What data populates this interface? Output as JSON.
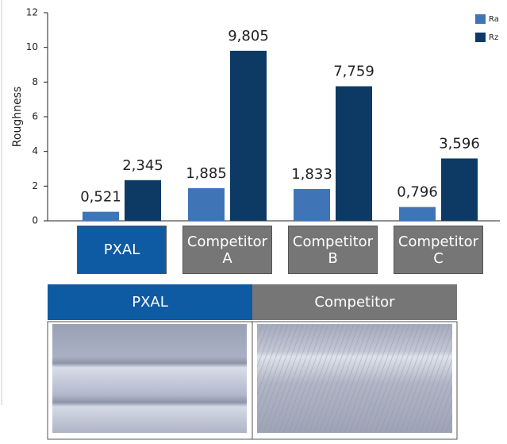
{
  "chart_data": {
    "type": "bar",
    "y_label": "Roughness",
    "categories": [
      "PXAL",
      "Competitor A",
      "Competitor B",
      "Competitor C"
    ],
    "category_box_colors": [
      "#0f5ba3",
      "#767676",
      "#767676",
      "#767676"
    ],
    "series": [
      {
        "name": "Ra",
        "color": "#3f74b6",
        "values": [
          0.521,
          1.885,
          1.833,
          0.796
        ],
        "value_labels": [
          "0,521",
          "1,885",
          "1,833",
          "0,796"
        ]
      },
      {
        "name": "Rz",
        "color": "#0d3a64",
        "values": [
          2.345,
          9.805,
          7.759,
          3.596
        ],
        "value_labels": [
          "2,345",
          "9,805",
          "7,759",
          "3,596"
        ]
      }
    ],
    "ylim": [
      0,
      12
    ],
    "yticks": [
      0,
      2,
      4,
      6,
      8,
      10,
      12
    ],
    "grid": false,
    "legend": "top-right"
  },
  "comparison": {
    "headers": [
      "PXAL",
      "Competitor"
    ]
  }
}
